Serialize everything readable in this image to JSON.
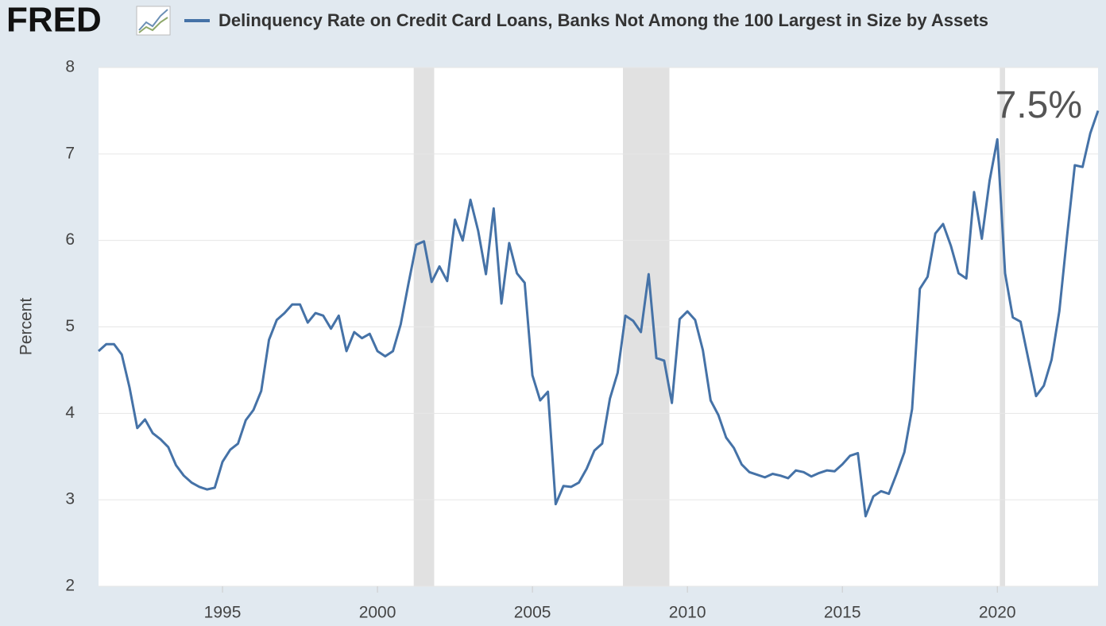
{
  "chart_data": {
    "type": "line",
    "logo": "FRED",
    "title": "Delinquency Rate on Credit Card Loans, Banks Not Among the 100 Largest in Size by Assets",
    "y_label": "Percent",
    "annotation": "7.5%",
    "xlim": [
      1991,
      2023.25
    ],
    "ylim": [
      2,
      8
    ],
    "xticks": [
      1995,
      2000,
      2005,
      2010,
      2015,
      2020
    ],
    "yticks": [
      2,
      3,
      4,
      5,
      6,
      7,
      8
    ],
    "grid": true,
    "shaded_periods": [
      [
        2001.17,
        2001.83
      ],
      [
        2007.92,
        2009.42
      ],
      [
        2020.08,
        2020.25
      ]
    ],
    "x": [
      1991,
      1991.25,
      1991.5,
      1991.75,
      1992,
      1992.25,
      1992.5,
      1992.75,
      1993,
      1993.25,
      1993.5,
      1993.75,
      1994,
      1994.25,
      1994.5,
      1994.75,
      1995,
      1995.25,
      1995.5,
      1995.75,
      1996,
      1996.25,
      1996.5,
      1996.75,
      1997,
      1997.25,
      1997.5,
      1997.75,
      1998,
      1998.25,
      1998.5,
      1998.75,
      1999,
      1999.25,
      1999.5,
      1999.75,
      2000,
      2000.25,
      2000.5,
      2000.75,
      2001,
      2001.25,
      2001.5,
      2001.75,
      2002,
      2002.25,
      2002.5,
      2002.75,
      2003,
      2003.25,
      2003.5,
      2003.75,
      2004,
      2004.25,
      2004.5,
      2004.75,
      2005,
      2005.25,
      2005.5,
      2005.75,
      2006,
      2006.25,
      2006.5,
      2006.75,
      2007,
      2007.25,
      2007.5,
      2007.75,
      2008,
      2008.25,
      2008.5,
      2008.75,
      2009,
      2009.25,
      2009.5,
      2009.75,
      2010,
      2010.25,
      2010.5,
      2010.75,
      2011,
      2011.25,
      2011.5,
      2011.75,
      2012,
      2012.25,
      2012.5,
      2012.75,
      2013,
      2013.25,
      2013.5,
      2013.75,
      2014,
      2014.25,
      2014.5,
      2014.75,
      2015,
      2015.25,
      2015.5,
      2015.75,
      2016,
      2016.25,
      2016.5,
      2016.75,
      2017,
      2017.25,
      2017.5,
      2017.75,
      2018,
      2018.25,
      2018.5,
      2018.75,
      2019,
      2019.25,
      2019.5,
      2019.75,
      2020,
      2020.25,
      2020.5,
      2020.75,
      2021,
      2021.25,
      2021.5,
      2021.75,
      2022,
      2022.25,
      2022.5,
      2022.75,
      2023,
      2023.25
    ],
    "series": [
      {
        "name": "Delinquency Rate on Credit Card Loans, Banks Not Among the 100 Largest in Size by Assets",
        "color": "#4572a7",
        "values": [
          4.72,
          4.8,
          4.8,
          4.68,
          4.3,
          3.83,
          3.93,
          3.77,
          3.7,
          3.61,
          3.4,
          3.28,
          3.2,
          3.15,
          3.12,
          3.14,
          3.44,
          3.58,
          3.65,
          3.92,
          4.04,
          4.26,
          4.85,
          5.08,
          5.16,
          5.26,
          5.26,
          5.05,
          5.16,
          5.13,
          4.98,
          5.13,
          4.72,
          4.94,
          4.87,
          4.92,
          4.72,
          4.66,
          4.72,
          5.03,
          5.5,
          5.95,
          5.99,
          5.52,
          5.7,
          5.53,
          6.24,
          6.0,
          6.47,
          6.11,
          5.61,
          6.37,
          5.27,
          5.97,
          5.62,
          5.51,
          4.44,
          4.15,
          4.25,
          2.95,
          3.16,
          3.15,
          3.2,
          3.36,
          3.57,
          3.65,
          4.17,
          4.47,
          5.13,
          5.07,
          4.94,
          5.61,
          4.64,
          4.61,
          4.12,
          5.09,
          5.18,
          5.08,
          4.73,
          4.15,
          3.98,
          3.72,
          3.6,
          3.41,
          3.32,
          3.29,
          3.26,
          3.3,
          3.28,
          3.25,
          3.34,
          3.32,
          3.27,
          3.31,
          3.34,
          3.33,
          3.41,
          3.51,
          3.54,
          2.81,
          3.04,
          3.1,
          3.07,
          3.3,
          3.55,
          4.05,
          5.44,
          5.58,
          6.08,
          6.19,
          5.94,
          5.62,
          5.56,
          6.56,
          6.02,
          6.69,
          7.17,
          5.62,
          5.11,
          5.06,
          4.63,
          4.2,
          4.32,
          4.62,
          5.18,
          6.05,
          6.87,
          6.85,
          7.24,
          7.5
        ]
      }
    ]
  }
}
